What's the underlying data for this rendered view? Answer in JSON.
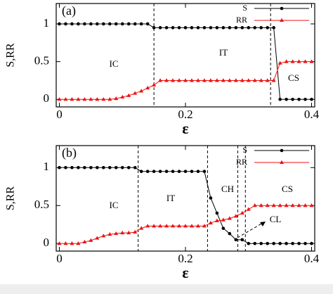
{
  "chart_data": [
    {
      "type": "line",
      "panel_label": "(a)",
      "xlabel": "ε",
      "ylabel": "S,RR",
      "legend": "upper right",
      "xlim": [
        -0.005,
        0.405
      ],
      "ylim": [
        -0.1,
        1.27
      ],
      "xticks": [
        0,
        0.2,
        0.4
      ],
      "yticks": [
        0,
        0.5,
        1
      ],
      "vlines": [
        0.15,
        0.335
      ],
      "annotations": [
        "IC",
        "IT",
        "CS"
      ],
      "x": [
        0,
        0.01,
        0.02,
        0.03,
        0.04,
        0.05,
        0.06,
        0.07,
        0.08,
        0.09,
        0.1,
        0.11,
        0.12,
        0.13,
        0.14,
        0.15,
        0.16,
        0.17,
        0.18,
        0.19,
        0.2,
        0.21,
        0.22,
        0.23,
        0.24,
        0.25,
        0.26,
        0.27,
        0.28,
        0.29,
        0.3,
        0.31,
        0.32,
        0.33,
        0.34,
        0.35,
        0.36,
        0.37,
        0.38,
        0.39,
        0.4
      ],
      "series": [
        {
          "name": "S",
          "color": "#000000",
          "marker": "circle",
          "values": [
            1,
            1,
            1,
            1,
            1,
            1,
            1,
            1,
            1,
            1,
            1,
            1,
            1,
            1,
            1,
            0.95,
            0.95,
            0.95,
            0.95,
            0.95,
            0.95,
            0.95,
            0.95,
            0.95,
            0.95,
            0.95,
            0.95,
            0.95,
            0.95,
            0.95,
            0.95,
            0.95,
            0.95,
            0.95,
            0.95,
            0,
            0,
            0,
            0,
            0,
            0
          ]
        },
        {
          "name": "RR",
          "color": "#ee1111",
          "marker": "triangle",
          "values": [
            0,
            0,
            0,
            0,
            0,
            0,
            0,
            0,
            0,
            0.01,
            0.03,
            0.05,
            0.08,
            0.11,
            0.15,
            0.19,
            0.25,
            0.25,
            0.25,
            0.25,
            0.25,
            0.25,
            0.25,
            0.25,
            0.25,
            0.25,
            0.25,
            0.25,
            0.25,
            0.25,
            0.25,
            0.25,
            0.25,
            0.25,
            0.25,
            0.48,
            0.5,
            0.5,
            0.5,
            0.5,
            0.5
          ]
        }
      ]
    },
    {
      "type": "line",
      "panel_label": "(b)",
      "xlabel": "ε",
      "ylabel": "S,RR",
      "legend": "upper right",
      "xlim": [
        -0.005,
        0.405
      ],
      "ylim": [
        -0.1,
        1.29
      ],
      "xticks": [
        0,
        0.2,
        0.4
      ],
      "yticks": [
        0,
        0.5,
        1
      ],
      "vlines": [
        0.125,
        0.235,
        0.283,
        0.295
      ],
      "annotations": [
        "IC",
        "IT",
        "CH",
        "CS",
        "CL"
      ],
      "x": [
        0,
        0.01,
        0.02,
        0.03,
        0.04,
        0.05,
        0.06,
        0.07,
        0.08,
        0.09,
        0.1,
        0.11,
        0.12,
        0.13,
        0.14,
        0.15,
        0.16,
        0.17,
        0.18,
        0.19,
        0.2,
        0.21,
        0.22,
        0.23,
        0.24,
        0.25,
        0.26,
        0.27,
        0.28,
        0.29,
        0.3,
        0.31,
        0.32,
        0.33,
        0.34,
        0.35,
        0.36,
        0.37,
        0.38,
        0.39,
        0.4
      ],
      "series": [
        {
          "name": "S",
          "color": "#000000",
          "marker": "circle",
          "values": [
            1,
            1,
            1,
            1,
            1,
            1,
            1,
            1,
            1,
            1,
            1,
            1,
            1,
            0.95,
            0.95,
            0.95,
            0.95,
            0.95,
            0.95,
            0.95,
            0.95,
            0.95,
            0.95,
            0.95,
            0.6,
            0.4,
            0.2,
            0.13,
            0.05,
            0.05,
            0,
            0,
            0,
            0,
            0,
            0,
            0,
            0,
            0,
            0,
            0
          ]
        },
        {
          "name": "RR",
          "color": "#ee1111",
          "marker": "triangle",
          "values": [
            0,
            0,
            0,
            0,
            0.02,
            0.04,
            0.07,
            0.1,
            0.12,
            0.13,
            0.14,
            0.14,
            0.15,
            0.2,
            0.23,
            0.23,
            0.23,
            0.23,
            0.23,
            0.23,
            0.23,
            0.23,
            0.23,
            0.23,
            0.27,
            0.3,
            0.31,
            0.33,
            0.36,
            0.4,
            0.45,
            0.5,
            0.5,
            0.5,
            0.5,
            0.5,
            0.5,
            0.5,
            0.5,
            0.5,
            0.5
          ]
        }
      ]
    }
  ]
}
